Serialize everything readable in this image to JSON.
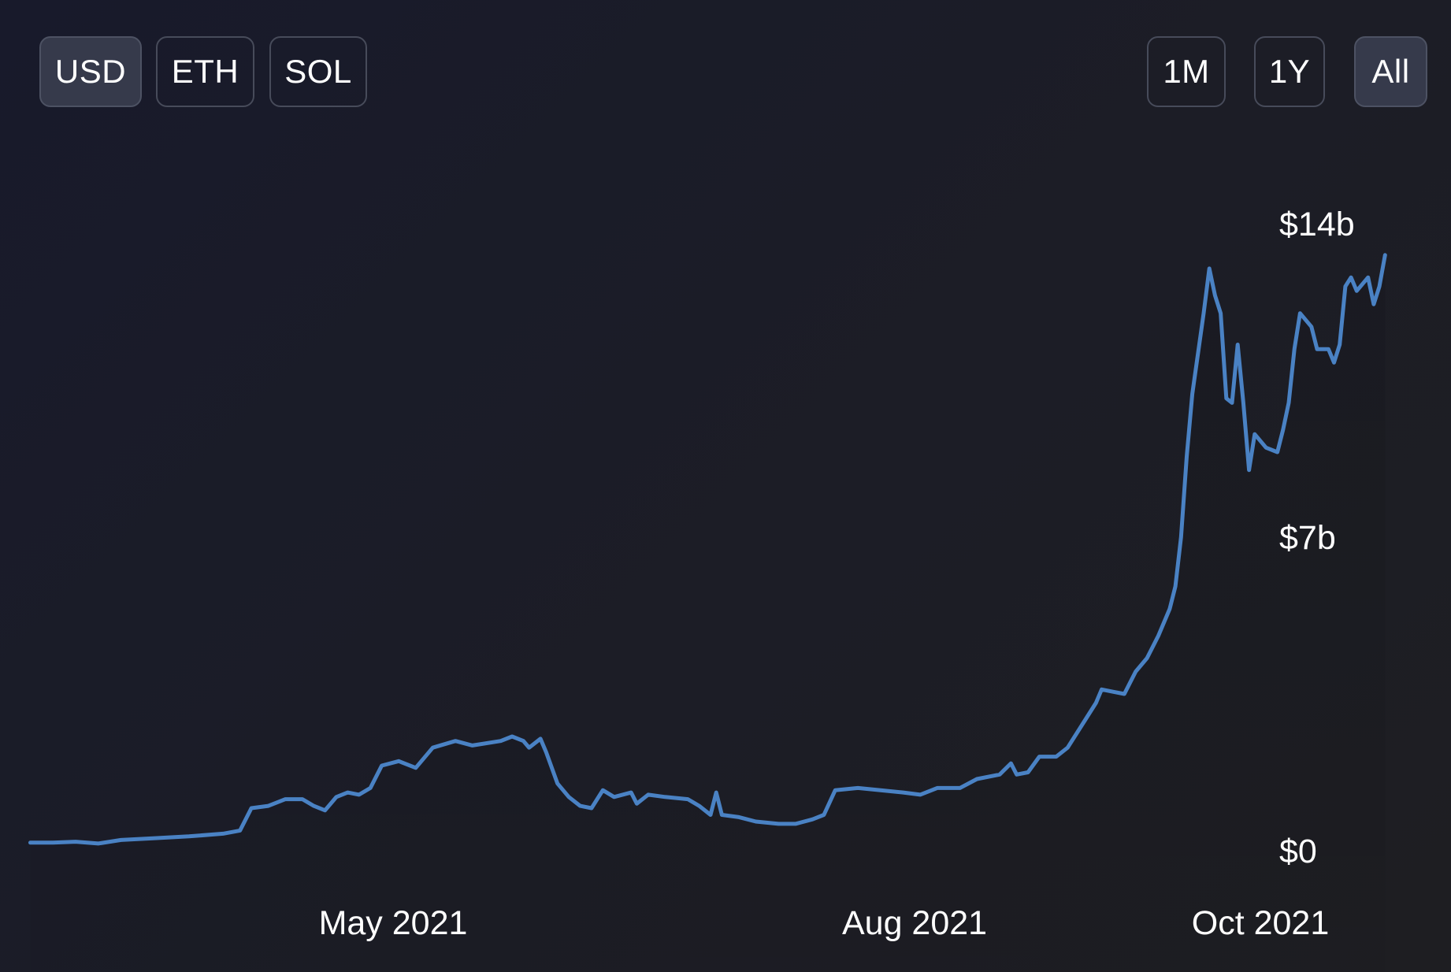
{
  "currency_toggle": {
    "options": [
      "USD",
      "ETH",
      "SOL"
    ],
    "selected": "USD"
  },
  "range_toggle": {
    "options": [
      "1M",
      "1Y",
      "All"
    ],
    "selected": "All"
  },
  "colors": {
    "background": "#1b1c28",
    "line": "#4a82c4",
    "button_border": "#474b5a",
    "button_active": "#363a4b",
    "text": "#ffffff"
  },
  "chart_data": {
    "type": "line",
    "title": "",
    "xlabel": "",
    "ylabel": "",
    "y_axis_position": "right",
    "ylim": [
      0,
      14
    ],
    "y_ticks": [
      {
        "value": 14,
        "label": "$14b"
      },
      {
        "value": 7,
        "label": "$7b"
      },
      {
        "value": 0,
        "label": "$0"
      }
    ],
    "x_ticks": [
      {
        "date": "2021-05-01",
        "label": "May 2021"
      },
      {
        "date": "2021-08-01",
        "label": "Aug 2021"
      },
      {
        "date": "2021-10-01",
        "label": "Oct 2021"
      }
    ],
    "grid": false,
    "series": [
      {
        "unit": "billion USD",
        "points": [
          [
            "2021-02-26",
            0.18
          ],
          [
            "2021-03-02",
            0.18
          ],
          [
            "2021-03-06",
            0.2
          ],
          [
            "2021-03-10",
            0.16
          ],
          [
            "2021-03-14",
            0.24
          ],
          [
            "2021-03-20",
            0.28
          ],
          [
            "2021-03-26",
            0.32
          ],
          [
            "2021-04-01",
            0.38
          ],
          [
            "2021-04-04",
            0.45
          ],
          [
            "2021-04-06",
            0.95
          ],
          [
            "2021-04-09",
            1.0
          ],
          [
            "2021-04-12",
            1.15
          ],
          [
            "2021-04-15",
            1.15
          ],
          [
            "2021-04-17",
            1.0
          ],
          [
            "2021-04-19",
            0.9
          ],
          [
            "2021-04-21",
            1.2
          ],
          [
            "2021-04-23",
            1.3
          ],
          [
            "2021-04-25",
            1.25
          ],
          [
            "2021-04-27",
            1.4
          ],
          [
            "2021-04-29",
            1.9
          ],
          [
            "2021-05-02",
            2.0
          ],
          [
            "2021-05-05",
            1.85
          ],
          [
            "2021-05-08",
            2.3
          ],
          [
            "2021-05-12",
            2.45
          ],
          [
            "2021-05-15",
            2.35
          ],
          [
            "2021-05-20",
            2.45
          ],
          [
            "2021-05-22",
            2.55
          ],
          [
            "2021-05-24",
            2.45
          ],
          [
            "2021-05-25",
            2.3
          ],
          [
            "2021-05-27",
            2.5
          ],
          [
            "2021-05-28",
            2.2
          ],
          [
            "2021-05-30",
            1.5
          ],
          [
            "2021-06-01",
            1.2
          ],
          [
            "2021-06-03",
            1.0
          ],
          [
            "2021-06-05",
            0.95
          ],
          [
            "2021-06-07",
            1.35
          ],
          [
            "2021-06-09",
            1.2
          ],
          [
            "2021-06-12",
            1.3
          ],
          [
            "2021-06-13",
            1.05
          ],
          [
            "2021-06-15",
            1.25
          ],
          [
            "2021-06-18",
            1.2
          ],
          [
            "2021-06-22",
            1.15
          ],
          [
            "2021-06-24",
            1.0
          ],
          [
            "2021-06-26",
            0.8
          ],
          [
            "2021-06-27",
            1.3
          ],
          [
            "2021-06-28",
            0.8
          ],
          [
            "2021-07-01",
            0.75
          ],
          [
            "2021-07-04",
            0.65
          ],
          [
            "2021-07-08",
            0.6
          ],
          [
            "2021-07-11",
            0.6
          ],
          [
            "2021-07-14",
            0.7
          ],
          [
            "2021-07-16",
            0.8
          ],
          [
            "2021-07-18",
            1.35
          ],
          [
            "2021-07-22",
            1.4
          ],
          [
            "2021-07-26",
            1.35
          ],
          [
            "2021-07-30",
            1.3
          ],
          [
            "2021-08-02",
            1.25
          ],
          [
            "2021-08-05",
            1.4
          ],
          [
            "2021-08-09",
            1.4
          ],
          [
            "2021-08-12",
            1.6
          ],
          [
            "2021-08-16",
            1.7
          ],
          [
            "2021-08-18",
            1.95
          ],
          [
            "2021-08-19",
            1.7
          ],
          [
            "2021-08-21",
            1.75
          ],
          [
            "2021-08-23",
            2.1
          ],
          [
            "2021-08-26",
            2.1
          ],
          [
            "2021-08-28",
            2.3
          ],
          [
            "2021-08-31",
            2.9
          ],
          [
            "2021-09-02",
            3.3
          ],
          [
            "2021-09-03",
            3.6
          ],
          [
            "2021-09-05",
            3.55
          ],
          [
            "2021-09-07",
            3.5
          ],
          [
            "2021-09-09",
            4.0
          ],
          [
            "2021-09-11",
            4.3
          ],
          [
            "2021-09-13",
            4.8
          ],
          [
            "2021-09-15",
            5.4
          ],
          [
            "2021-09-16",
            5.9
          ],
          [
            "2021-09-17",
            7.0
          ],
          [
            "2021-09-18",
            8.8
          ],
          [
            "2021-09-19",
            10.2
          ],
          [
            "2021-09-21",
            12.0
          ],
          [
            "2021-09-22",
            13.0
          ],
          [
            "2021-09-23",
            12.4
          ],
          [
            "2021-09-24",
            12.0
          ],
          [
            "2021-09-25",
            10.1
          ],
          [
            "2021-09-26",
            10.0
          ],
          [
            "2021-09-27",
            11.3
          ],
          [
            "2021-09-28",
            10.0
          ],
          [
            "2021-09-29",
            8.5
          ],
          [
            "2021-09-30",
            9.3
          ],
          [
            "2021-10-02",
            9.0
          ],
          [
            "2021-10-04",
            8.9
          ],
          [
            "2021-10-05",
            9.4
          ],
          [
            "2021-10-06",
            10.0
          ],
          [
            "2021-10-07",
            11.2
          ],
          [
            "2021-10-08",
            12.0
          ],
          [
            "2021-10-10",
            11.7
          ],
          [
            "2021-10-11",
            11.2
          ],
          [
            "2021-10-13",
            11.2
          ],
          [
            "2021-10-14",
            10.9
          ],
          [
            "2021-10-15",
            11.3
          ],
          [
            "2021-10-16",
            12.6
          ],
          [
            "2021-10-17",
            12.8
          ],
          [
            "2021-10-18",
            12.5
          ],
          [
            "2021-10-20",
            12.8
          ],
          [
            "2021-10-21",
            12.2
          ],
          [
            "2021-10-22",
            12.6
          ],
          [
            "2021-10-23",
            13.3
          ]
        ]
      }
    ]
  }
}
